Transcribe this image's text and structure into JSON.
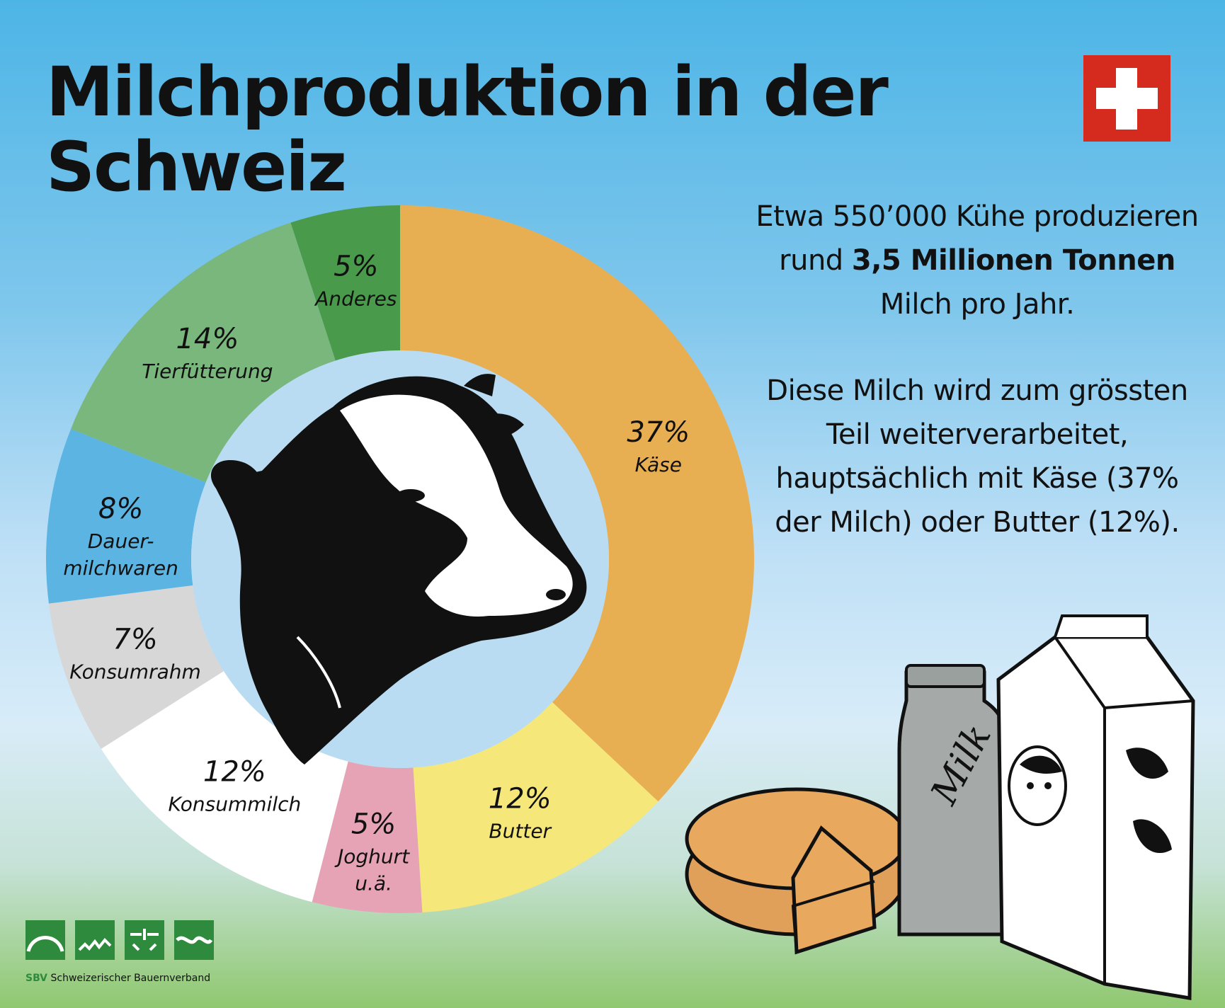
{
  "header": {
    "title": "Milchproduktion in der Schweiz",
    "flag": {
      "icon": "swiss-flag-icon",
      "color": "#d52b1e"
    }
  },
  "info": {
    "p1_a": "Etwa 550’000 Kühe produzieren rund ",
    "p1_bold": "3,5 Millionen Tonnen",
    "p1_b": " Milch pro Jahr.",
    "p2": "Diese Milch wird zum grössten Teil weiterverarbeitet, hauptsächlich mit Käse (37% der Milch) oder Butter (12%)."
  },
  "chart_data": {
    "type": "pie",
    "donut": true,
    "start": "12 o'clock, clockwise",
    "slices": [
      {
        "label": "Käse",
        "value": 37,
        "value_label": "37%",
        "color": "#e8ae52"
      },
      {
        "label": "Butter",
        "value": 12,
        "value_label": "12%",
        "color": "#f5e77a"
      },
      {
        "label": "Joghurt u.ä.",
        "label_lines": [
          "Joghurt",
          "u.ä."
        ],
        "value": 5,
        "value_label": "5%",
        "color": "#e7a3b6"
      },
      {
        "label": "Konsummilch",
        "value": 12,
        "value_label": "12%",
        "color": "#ffffff"
      },
      {
        "label": "Konsumrahm",
        "value": 7,
        "value_label": "7%",
        "color": "#d7d7d7"
      },
      {
        "label": "Dauermilchwaren",
        "label_lines": [
          "Dauer-",
          "milchwaren"
        ],
        "value": 8,
        "value_label": "8%",
        "color": "#5bb4e2"
      },
      {
        "label": "Tierfütterung",
        "value": 14,
        "value_label": "14%",
        "color": "#79b77d"
      },
      {
        "label": "Anderes",
        "value": 5,
        "value_label": "5%",
        "color": "#4a9a4c"
      }
    ],
    "center_icon": "cow-head-icon"
  },
  "illustrations": [
    "cheese-wheel-icon",
    "milk-bottle-icon",
    "milk-carton-icon"
  ],
  "bottle_text": "Milk",
  "footer": {
    "abbr": "SBV",
    "name": "Schweizerischer Bauernverband",
    "logo_color": "#2e8a3c"
  }
}
